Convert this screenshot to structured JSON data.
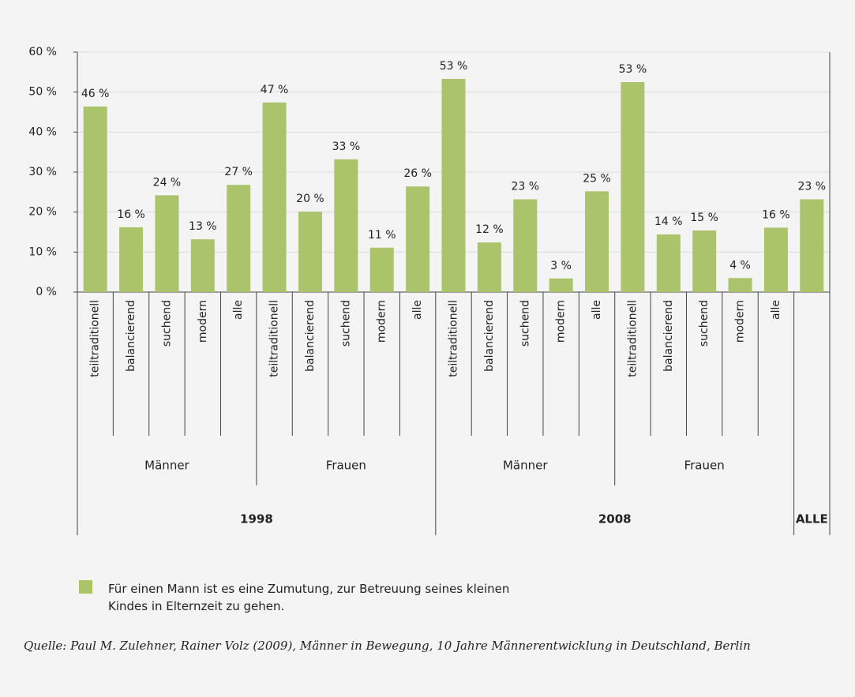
{
  "chart_data": {
    "type": "bar",
    "color": "#abc46c",
    "ylim": [
      0,
      60
    ],
    "yticks": [
      {
        "value": 0,
        "label": "0 %"
      },
      {
        "value": 10,
        "label": "10 %"
      },
      {
        "value": 20,
        "label": "20 %"
      },
      {
        "value": 30,
        "label": "30 %"
      },
      {
        "value": 40,
        "label": "40 %"
      },
      {
        "value": 50,
        "label": "50 %"
      },
      {
        "value": 60,
        "label": "60 %"
      }
    ],
    "grid": true,
    "years": [
      {
        "label": "1998",
        "groups": [
          {
            "label": "Männer",
            "categories": [
              "teiltraditionell",
              "balancierend",
              "suchend",
              "modern",
              "alle"
            ],
            "values": [
              46.4,
              16.2,
              24.2,
              13.2,
              26.8
            ],
            "value_labels": [
              "46 %",
              "16 %",
              "24 %",
              "13 %",
              "27 %"
            ]
          },
          {
            "label": "Frauen",
            "categories": [
              "teiltraditionell",
              "balancierend",
              "suchend",
              "modern",
              "alle"
            ],
            "values": [
              47.4,
              20.1,
              33.2,
              11.1,
              26.4
            ],
            "value_labels": [
              "47 %",
              "20 %",
              "33 %",
              "11 %",
              "26 %"
            ]
          }
        ]
      },
      {
        "label": "2008",
        "groups": [
          {
            "label": "Männer",
            "categories": [
              "teiltraditionell",
              "balancierend",
              "suchend",
              "modern",
              "alle"
            ],
            "values": [
              53.3,
              12.4,
              23.2,
              3.4,
              25.2
            ],
            "value_labels": [
              "53 %",
              "12 %",
              "23 %",
              "3 %",
              "25 %"
            ]
          },
          {
            "label": "Frauen",
            "categories": [
              "teiltraditionell",
              "balancierend",
              "suchend",
              "modern",
              "alle"
            ],
            "values": [
              52.5,
              14.4,
              15.4,
              3.5,
              16.1
            ],
            "value_labels": [
              "53 %",
              "14 %",
              "15 %",
              "4 %",
              "16 %"
            ]
          }
        ]
      },
      {
        "label": "ALLE",
        "groups": [
          {
            "label": null,
            "categories": [
              null
            ],
            "values": [
              23.2
            ],
            "value_labels": [
              "23 %"
            ]
          }
        ]
      }
    ],
    "legend": "Für einen Mann ist es eine Zumutung, zur Betreuung seines kleinen Kindes in Elternzeit zu gehen.",
    "source": "Quelle: Paul M. Zulehner, Rainer Volz (2009), Männer in Bewegung, 10 Jahre Männerentwicklung in Deutschland, Berlin"
  }
}
